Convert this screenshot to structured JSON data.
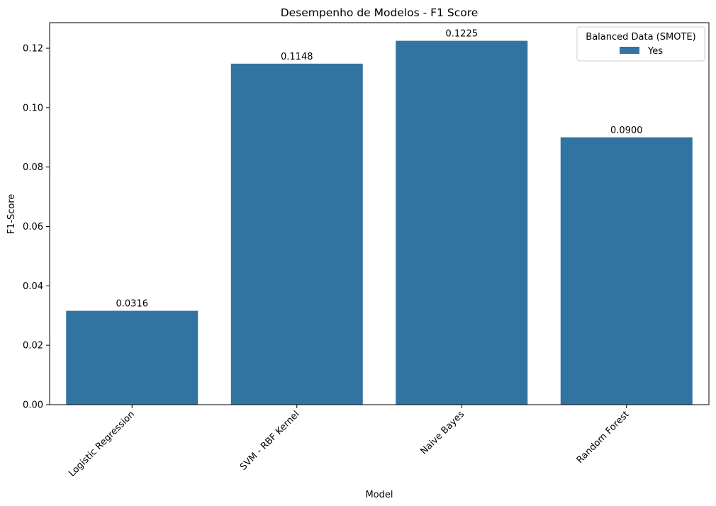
{
  "chart_data": {
    "type": "bar",
    "title": "Desempenho de Modelos - F1 Score",
    "xlabel": "Model",
    "ylabel": "F1-Score",
    "categories": [
      "Logistic Regression",
      "SVM - RBF Kernel",
      "Naive Bayes",
      "Random Forest"
    ],
    "series": [
      {
        "name": "Yes",
        "values": [
          0.0316,
          0.1148,
          0.1225,
          0.09
        ],
        "data_labels": [
          "0.0316",
          "0.1148",
          "0.1225",
          "0.0900"
        ],
        "color": "#3274a1"
      }
    ],
    "ylim": [
      0,
      0.1286
    ],
    "yticks": [
      0.0,
      0.02,
      0.04,
      0.06,
      0.08,
      0.1,
      0.12
    ],
    "ytick_labels": [
      "0.00",
      "0.02",
      "0.04",
      "0.06",
      "0.08",
      "0.10",
      "0.12"
    ],
    "grid": false,
    "legend": {
      "title": "Balanced Data (SMOTE)",
      "placement": "top-right"
    },
    "xtick_rotation_deg": 45
  }
}
